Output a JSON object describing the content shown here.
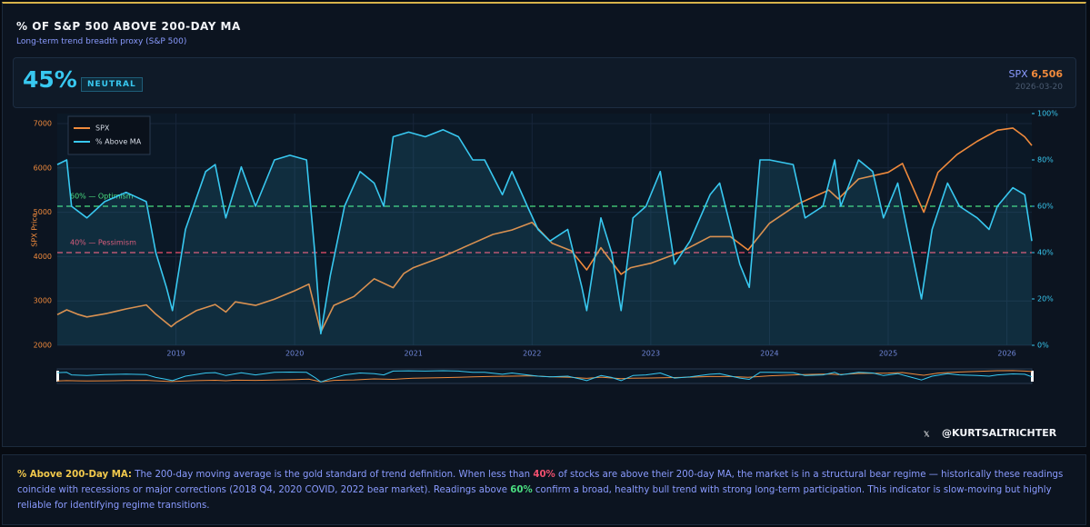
{
  "header": {
    "title": "% OF S&P 500 ABOVE 200-DAY MA",
    "subtitle": "Long-term trend breadth proxy (S&P 500)"
  },
  "stats": {
    "value": "45%",
    "status": "NEUTRAL",
    "index_label": "SPX",
    "index_value": "6,506",
    "date": "2026-03-20"
  },
  "chart_data": {
    "type": "line",
    "y_label": "SPX Price",
    "xlim": [
      2018.0,
      2026.21
    ],
    "xticks": [
      2019,
      2020,
      2021,
      2022,
      2023,
      2024,
      2025,
      2026
    ],
    "ylim": [
      2000,
      7225
    ],
    "yticks": [
      2000,
      3000,
      4000,
      5000,
      6000,
      7000
    ],
    "y2lim": [
      0,
      100
    ],
    "y2ticks": [
      {
        "value": 0,
        "label": "0%"
      },
      {
        "value": 20,
        "label": "20%"
      },
      {
        "value": 40,
        "label": "40%"
      },
      {
        "value": 60,
        "label": "60%"
      },
      {
        "value": 80,
        "label": "80%"
      },
      {
        "value": 100,
        "label": "100%"
      }
    ],
    "grid": true,
    "legend": "top-left",
    "reference_lines": [
      {
        "value": 60,
        "label": "60% — Optimism",
        "color": "#4ade80"
      },
      {
        "value": 40,
        "label": "40% — Pessimism",
        "color": "#f0506e"
      }
    ],
    "series": [
      {
        "name": "SPX",
        "color": "#f08a3c",
        "axis": "y",
        "x": [
          2018.0,
          2018.08,
          2018.17,
          2018.25,
          2018.42,
          2018.58,
          2018.75,
          2018.83,
          2018.96,
          2019.0,
          2019.17,
          2019.33,
          2019.42,
          2019.5,
          2019.67,
          2019.83,
          2020.0,
          2020.12,
          2020.22,
          2020.33,
          2020.5,
          2020.67,
          2020.83,
          2020.92,
          2021.0,
          2021.25,
          2021.5,
          2021.67,
          2021.83,
          2022.0,
          2022.17,
          2022.33,
          2022.46,
          2022.58,
          2022.75,
          2022.83,
          2023.0,
          2023.25,
          2023.5,
          2023.67,
          2023.82,
          2024.0,
          2024.25,
          2024.5,
          2024.58,
          2024.75,
          2025.0,
          2025.12,
          2025.25,
          2025.3,
          2025.42,
          2025.58,
          2025.75,
          2025.92,
          2026.05,
          2026.15,
          2026.21
        ],
        "values": [
          2690,
          2800,
          2700,
          2640,
          2720,
          2820,
          2910,
          2700,
          2420,
          2510,
          2780,
          2920,
          2750,
          2980,
          2900,
          3040,
          3230,
          3380,
          2300,
          2900,
          3100,
          3500,
          3300,
          3620,
          3750,
          4000,
          4300,
          4500,
          4600,
          4770,
          4300,
          4130,
          3700,
          4200,
          3600,
          3750,
          3850,
          4100,
          4450,
          4450,
          4150,
          4750,
          5200,
          5500,
          5300,
          5750,
          5900,
          6100,
          5300,
          5000,
          5900,
          6300,
          6600,
          6850,
          6900,
          6700,
          6506
        ]
      },
      {
        "name": "% Above MA",
        "color": "#38c8f0",
        "axis": "y2",
        "x": [
          2018.0,
          2018.08,
          2018.12,
          2018.25,
          2018.4,
          2018.58,
          2018.75,
          2018.83,
          2018.92,
          2018.97,
          2019.08,
          2019.25,
          2019.33,
          2019.42,
          2019.55,
          2019.67,
          2019.83,
          2019.96,
          2020.1,
          2020.17,
          2020.22,
          2020.3,
          2020.42,
          2020.55,
          2020.67,
          2020.75,
          2020.83,
          2020.96,
          2021.1,
          2021.25,
          2021.38,
          2021.5,
          2021.6,
          2021.75,
          2021.83,
          2021.96,
          2022.05,
          2022.15,
          2022.3,
          2022.42,
          2022.46,
          2022.58,
          2022.67,
          2022.75,
          2022.85,
          2022.96,
          2023.08,
          2023.2,
          2023.33,
          2023.5,
          2023.58,
          2023.75,
          2023.83,
          2023.92,
          2024.0,
          2024.2,
          2024.3,
          2024.45,
          2024.55,
          2024.6,
          2024.75,
          2024.87,
          2024.96,
          2025.08,
          2025.2,
          2025.28,
          2025.37,
          2025.5,
          2025.6,
          2025.75,
          2025.85,
          2025.92,
          2026.05,
          2026.15,
          2026.21
        ],
        "values": [
          78,
          80,
          60,
          55,
          62,
          66,
          62,
          40,
          25,
          15,
          50,
          75,
          78,
          55,
          77,
          60,
          80,
          82,
          80,
          40,
          5,
          30,
          60,
          75,
          70,
          60,
          90,
          92,
          90,
          93,
          90,
          80,
          80,
          65,
          75,
          60,
          50,
          45,
          50,
          25,
          15,
          55,
          40,
          15,
          55,
          60,
          75,
          35,
          45,
          65,
          70,
          35,
          25,
          80,
          80,
          78,
          55,
          60,
          80,
          60,
          80,
          75,
          55,
          70,
          40,
          20,
          50,
          70,
          60,
          55,
          50,
          60,
          68,
          65,
          45
        ]
      }
    ]
  },
  "footer": {
    "handle": "@KURTSALTRICHTER"
  },
  "description": {
    "parts": [
      "% Above 200-Day MA:",
      " The 200-day moving average is the gold standard of trend definition. When less than ",
      "40%",
      " of stocks are above their 200-day MA, the market is in a structural bear regime — historically these readings coincide with recessions or major corrections (2018 Q4, 2020 COVID, 2022 bear market). Readings above ",
      "60%",
      " confirm a broad, healthy bull trend with strong long-term participation. This indicator is slow-moving but highly reliable for identifying regime transitions."
    ]
  }
}
